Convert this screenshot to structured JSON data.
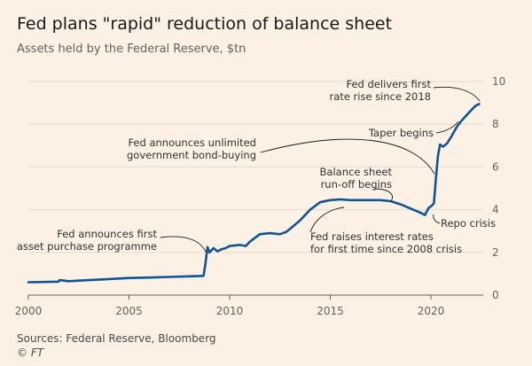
{
  "chart_data": {
    "type": "line",
    "title": "Fed plans \"rapid\" reduction of balance sheet",
    "subtitle": "Assets held by the Federal Reserve, $tn",
    "xlabel": "",
    "ylabel": "",
    "xlim": [
      2000,
      2022.6
    ],
    "ylim": [
      0,
      10
    ],
    "x_ticks": [
      "2000",
      "2005",
      "2010",
      "2015",
      "2020"
    ],
    "y_ticks": [
      "0",
      "2",
      "4",
      "6",
      "8",
      "10"
    ],
    "grid": true,
    "series": [
      {
        "name": "Assets held by the Federal Reserve",
        "color": "#0f5499",
        "x": [
          2000.0,
          2001.0,
          2001.5,
          2001.55,
          2002.0,
          2003.0,
          2004.0,
          2005.0,
          2006.0,
          2007.0,
          2008.0,
          2008.7,
          2008.8,
          2008.9,
          2009.0,
          2009.2,
          2009.4,
          2009.6,
          2009.8,
          2010.0,
          2010.5,
          2010.8,
          2011.0,
          2011.5,
          2012.0,
          2012.5,
          2012.8,
          2013.0,
          2013.5,
          2014.0,
          2014.5,
          2015.0,
          2015.5,
          2016.0,
          2016.5,
          2017.0,
          2017.5,
          2018.0,
          2018.5,
          2019.0,
          2019.5,
          2019.7,
          2019.9,
          2020.0,
          2020.15,
          2020.25,
          2020.35,
          2020.45,
          2020.6,
          2020.8,
          2021.0,
          2021.3,
          2021.6,
          2021.9,
          2022.2,
          2022.4
        ],
        "values": [
          0.6,
          0.62,
          0.63,
          0.7,
          0.65,
          0.7,
          0.75,
          0.8,
          0.82,
          0.85,
          0.88,
          0.9,
          1.5,
          2.25,
          2.0,
          2.2,
          2.05,
          2.15,
          2.2,
          2.3,
          2.35,
          2.3,
          2.5,
          2.85,
          2.9,
          2.85,
          2.95,
          3.1,
          3.5,
          4.0,
          4.35,
          4.45,
          4.48,
          4.45,
          4.45,
          4.45,
          4.45,
          4.4,
          4.25,
          4.05,
          3.85,
          3.75,
          4.1,
          4.15,
          4.3,
          5.5,
          6.5,
          7.05,
          6.95,
          7.1,
          7.4,
          7.9,
          8.25,
          8.55,
          8.85,
          8.95
        ]
      }
    ],
    "annotations": [
      {
        "lines": [
          "Fed delivers first",
          "rate rise since 2018"
        ]
      },
      {
        "lines": [
          "Taper begins"
        ]
      },
      {
        "lines": [
          "Fed announces unlimited",
          "government bond-buying"
        ]
      },
      {
        "lines": [
          "Balance sheet",
          "run-off begins"
        ]
      },
      {
        "lines": [
          "Repo crisis"
        ]
      },
      {
        "lines": [
          "Fed raises interest rates",
          "for first time since 2008 crisis"
        ]
      },
      {
        "lines": [
          "Fed announces first",
          "asset purchase programme"
        ]
      }
    ]
  },
  "footer": {
    "sources": "Sources: Federal Reserve, Bloomberg",
    "credit": "© FT"
  }
}
